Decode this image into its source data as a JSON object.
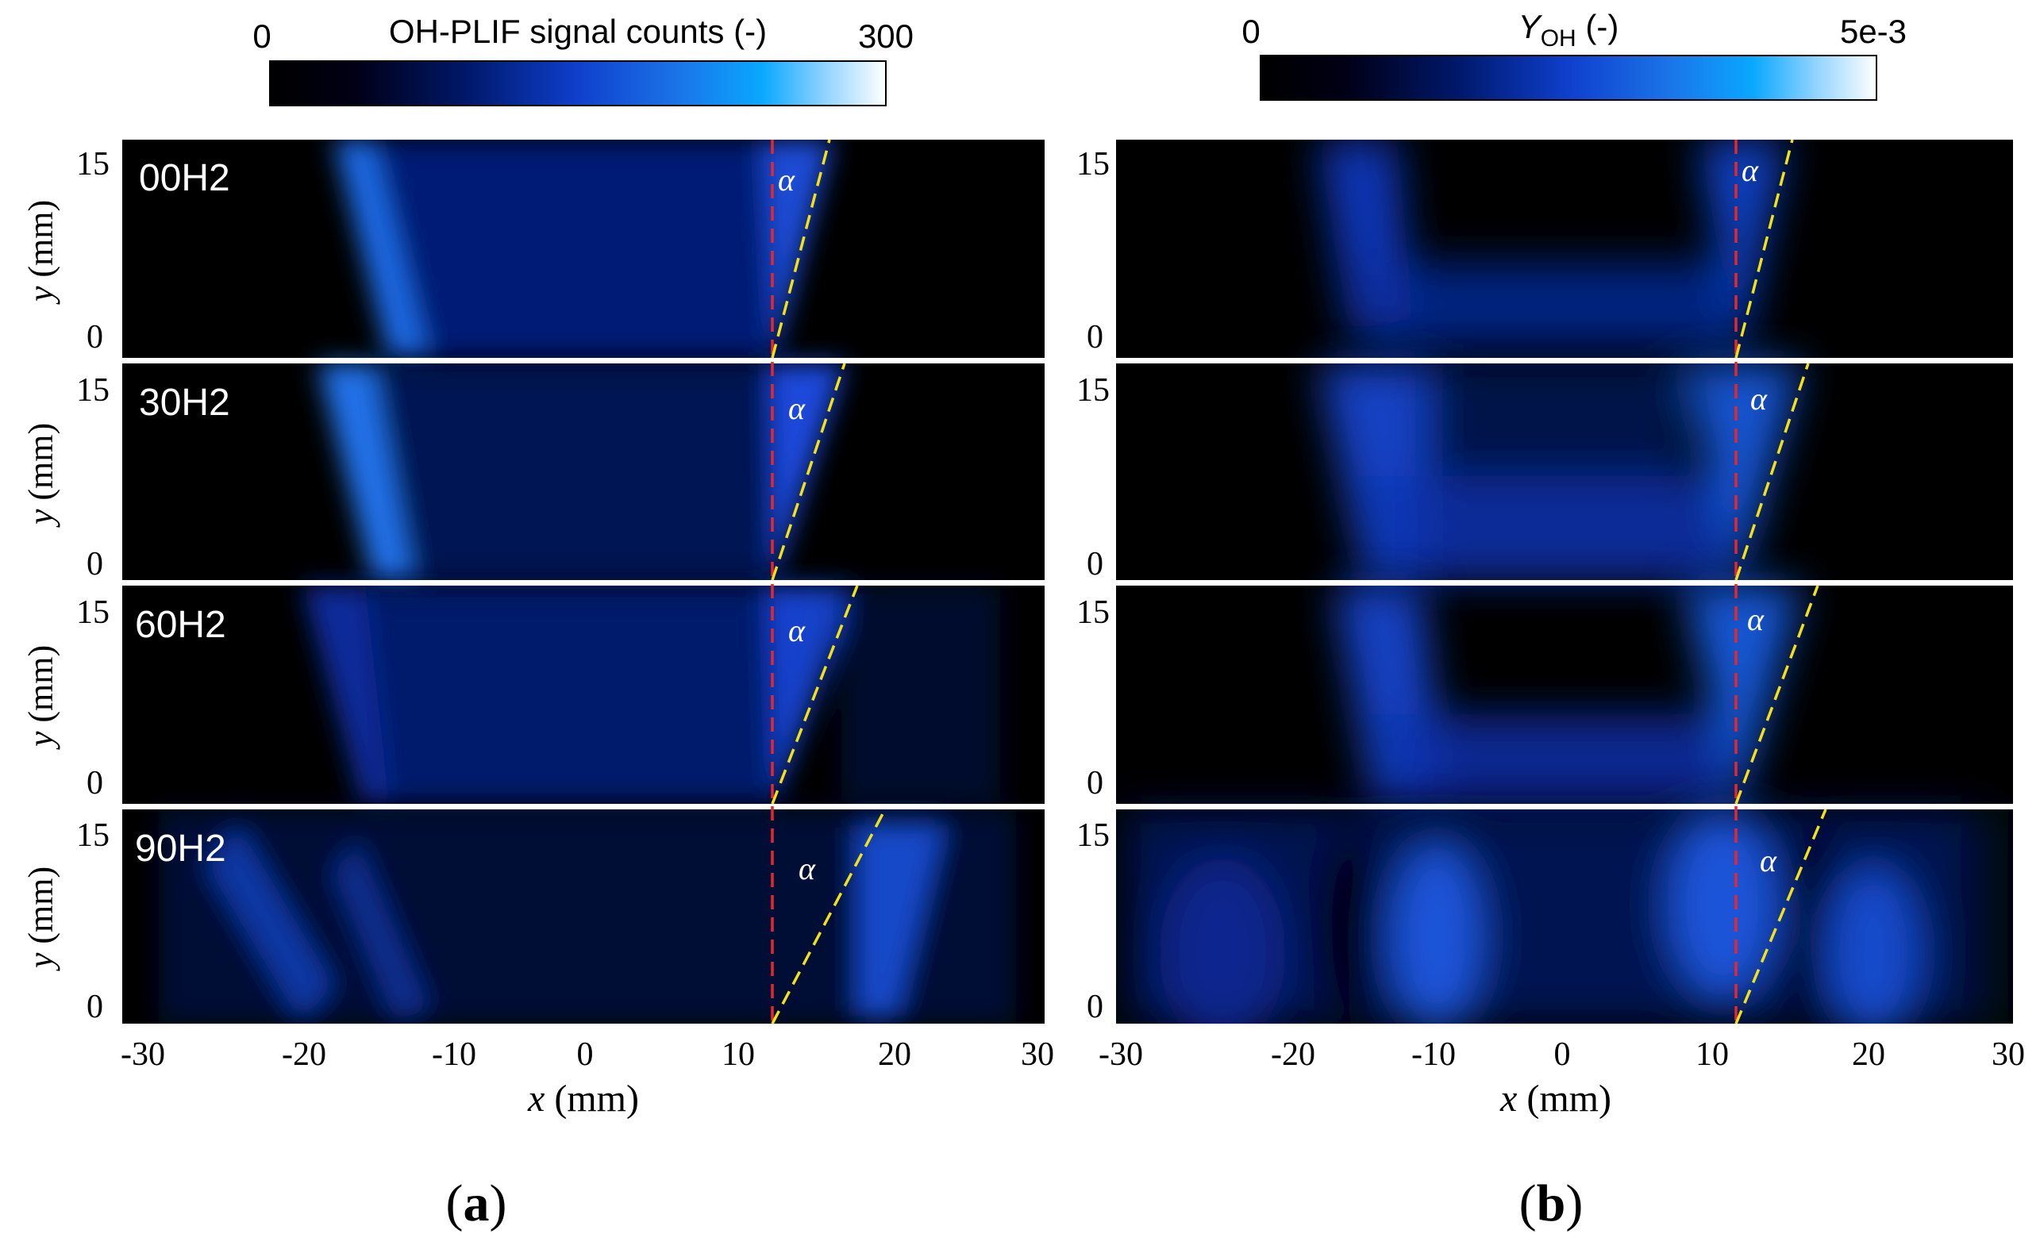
{
  "chart_data": [
    {
      "type": "heatmap",
      "colorbar": {
        "label": "OH-PLIF signal counts (-)",
        "min_label": "0",
        "max_label": "300",
        "range": [
          0,
          300
        ]
      },
      "xlabel": "x (mm)",
      "xlabel_var": "x",
      "xlabel_unit": "(mm)",
      "ylabel": "y (mm)",
      "ylabel_var": "y",
      "ylabel_unit": "(mm)",
      "xlim": [
        -30,
        30
      ],
      "ylim": [
        0,
        15
      ],
      "xticks": [
        "-30",
        "-20",
        "-10",
        "0",
        "10",
        "20",
        "30"
      ],
      "yticks": [
        "0",
        "15"
      ],
      "cases": [
        "00H2",
        "30H2",
        "60H2",
        "90H2"
      ],
      "reference_line_x": 12,
      "angle_label": "α",
      "panel_label_open": "(",
      "panel_letter": "a",
      "panel_label_close": ")"
    },
    {
      "type": "heatmap",
      "colorbar": {
        "label_main": "Y",
        "label_sub": "OH",
        "label_suffix": " (-)",
        "min_label": "0",
        "max_label": "5e-3",
        "range": [
          0,
          0.005
        ]
      },
      "xlabel": "x (mm)",
      "xlabel_var": "x",
      "xlabel_unit": "(mm)",
      "ylabel": "",
      "xlim": [
        -30,
        30
      ],
      "ylim": [
        0,
        15
      ],
      "xticks": [
        "-30",
        "-20",
        "-10",
        "0",
        "10",
        "20",
        "30"
      ],
      "yticks": [
        "0",
        "15"
      ],
      "reference_line_x": 11,
      "angle_label": "α",
      "panel_label_open": "(",
      "panel_letter": "b",
      "panel_label_close": ")"
    }
  ],
  "colors": {
    "ref_line": "#e8262b",
    "angle_line": "#f2e01b",
    "map_low": "#000000",
    "map_high": "#ffffff"
  }
}
